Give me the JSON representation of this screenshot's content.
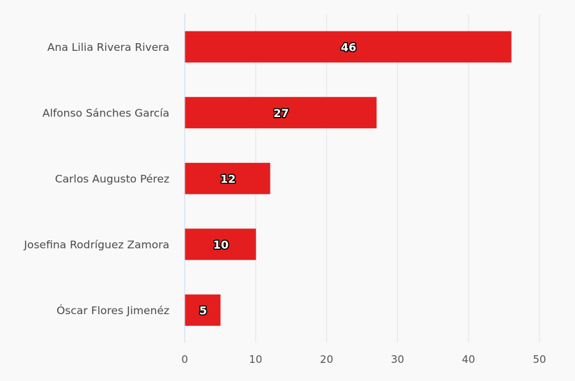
{
  "chart_data": {
    "type": "bar",
    "orientation": "horizontal",
    "categories": [
      "Ana Lilia Rivera Rivera",
      "Alfonso Sánches García",
      "Carlos Augusto Pérez",
      "Josefina Rodríguez Zamora",
      "Óscar Flores Jimenéz"
    ],
    "values": [
      46,
      27,
      12,
      10,
      5
    ],
    "data_labels": [
      "46",
      "27",
      "12",
      "10",
      "5"
    ],
    "xlim": [
      0,
      50
    ],
    "x_ticks": [
      0,
      10,
      20,
      30,
      40,
      50
    ],
    "x_tick_labels": [
      "0",
      "10",
      "20",
      "30",
      "40",
      "50"
    ],
    "grid": true,
    "legend": "none",
    "bar_color": "#e41e1e",
    "grid_color": "#e3e3e8",
    "axis_color": "#c9d6ea",
    "background": "#f9f9fa"
  }
}
